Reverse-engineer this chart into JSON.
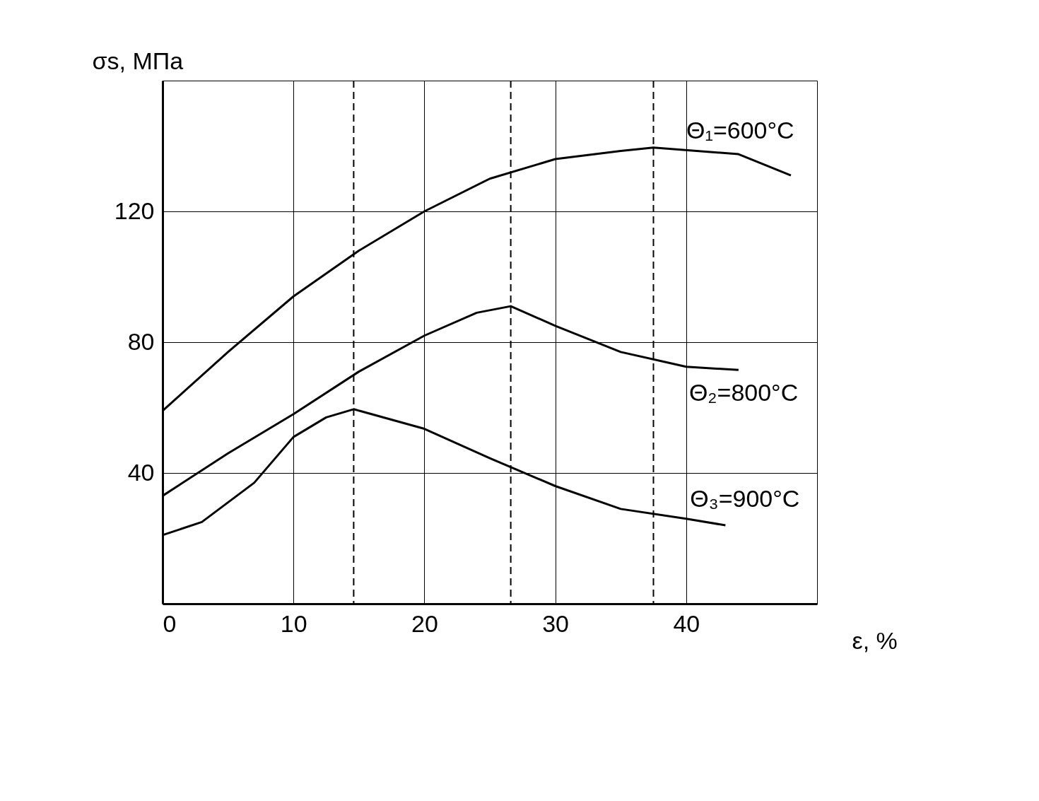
{
  "chart_data": {
    "type": "line",
    "xlabel": "ε, %",
    "ylabel": "σs, МПа",
    "xlim": [
      0,
      50
    ],
    "xticks": [
      0,
      10,
      20,
      30,
      40,
      {
        "value": 50,
        "label": null
      }
    ],
    "ylim": [
      0,
      160
    ],
    "yticks": [
      {
        "value": 0,
        "label": null
      },
      40,
      80,
      120,
      {
        "value": 160,
        "label": null
      }
    ],
    "grid": true,
    "marker": "none",
    "line_style": "solid",
    "series": [
      {
        "name": "Θ₁=600°C",
        "color": "#000000",
        "x": [
          0,
          5,
          10,
          15,
          20,
          25,
          30,
          35,
          37.5,
          44,
          48
        ],
        "values": [
          59,
          77,
          94,
          108,
          120,
          130,
          136,
          138.5,
          139.5,
          137.5,
          131
        ]
      },
      {
        "name": "Θ₂=800°C",
        "color": "#000000",
        "x": [
          0,
          5,
          10,
          15,
          20,
          24,
          26.6,
          30,
          35,
          40,
          44
        ],
        "values": [
          33,
          46,
          58,
          71,
          82,
          89,
          91,
          85,
          77,
          72.5,
          71.5
        ]
      },
      {
        "name": "Θ₃=900°C",
        "color": "#000000",
        "x": [
          0,
          3,
          7,
          10,
          12.5,
          14.6,
          20,
          25,
          30,
          35,
          40,
          43
        ],
        "values": [
          21,
          25,
          37,
          51,
          57,
          59.5,
          53.5,
          44.5,
          36,
          29,
          26,
          24
        ]
      }
    ],
    "ref_lines": [
      {
        "axis": "x",
        "value": 14.6,
        "line_style": "dashed",
        "color": "#000000"
      },
      {
        "axis": "x",
        "value": 26.6,
        "line_style": "dashed",
        "color": "#000000"
      },
      {
        "axis": "x",
        "value": 37.5,
        "line_style": "dashed",
        "color": "#000000"
      }
    ]
  }
}
